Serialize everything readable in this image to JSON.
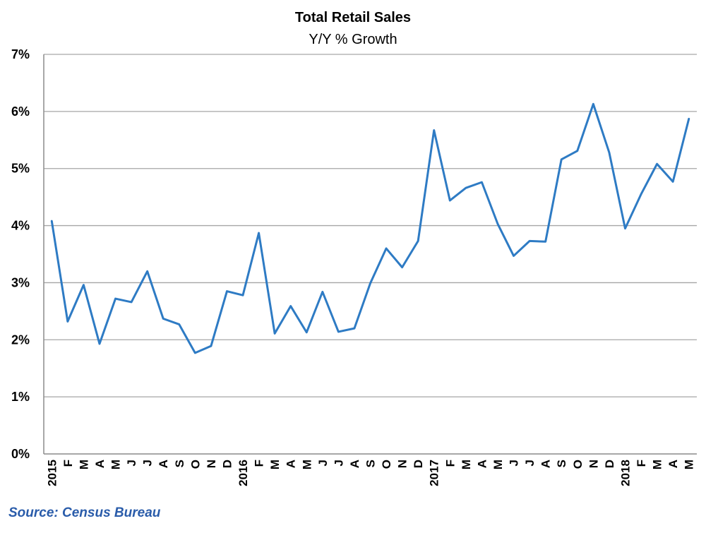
{
  "chart_data": {
    "type": "line",
    "title": "Total Retail Sales",
    "subtitle": "Y/Y % Growth",
    "xlabel": "",
    "ylabel": "",
    "ylim": [
      0,
      7
    ],
    "yticks": [
      "0%",
      "1%",
      "2%",
      "3%",
      "4%",
      "5%",
      "6%",
      "7%"
    ],
    "grid": true,
    "categories": [
      "2015",
      "F",
      "M",
      "A",
      "M",
      "J",
      "J",
      "A",
      "S",
      "O",
      "N",
      "D",
      "2016",
      "F",
      "M",
      "A",
      "M",
      "J",
      "J",
      "A",
      "S",
      "O",
      "N",
      "D",
      "2017",
      "F",
      "M",
      "A",
      "M",
      "J",
      "J",
      "A",
      "S",
      "O",
      "N",
      "D",
      "2018",
      "F",
      "M",
      "A",
      "M"
    ],
    "series": [
      {
        "color": "#2e7bc4",
        "values": [
          4.08,
          2.32,
          2.96,
          1.93,
          2.72,
          2.66,
          3.2,
          2.37,
          2.27,
          1.77,
          1.89,
          2.85,
          2.78,
          3.87,
          2.11,
          2.59,
          2.13,
          2.84,
          2.14,
          2.2,
          2.99,
          3.6,
          3.27,
          3.73,
          5.67,
          4.44,
          4.66,
          4.76,
          4.03,
          3.47,
          3.73,
          3.72,
          5.16,
          5.31,
          6.13,
          5.28,
          3.95,
          4.55,
          5.08,
          4.77,
          5.87
        ]
      }
    ]
  },
  "source": "Source: Census Bureau"
}
